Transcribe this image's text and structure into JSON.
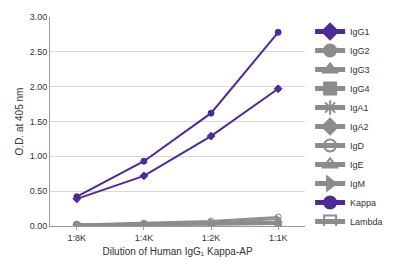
{
  "chart_data": {
    "type": "line",
    "x_label": "Dilution of Human IgG₁ Kappa-AP",
    "y_label": "O.D. at 405 nm",
    "categories": [
      "1:8K",
      "1:4K",
      "1:2K",
      "1:1K"
    ],
    "ylim": [
      0,
      3
    ],
    "yticks": [
      {
        "value": 0,
        "label": "0.00"
      },
      {
        "value": 0.5,
        "label": "0.50"
      },
      {
        "value": 1,
        "label": "1.00"
      },
      {
        "value": 1.5,
        "label": "1.50"
      },
      {
        "value": 2,
        "label": "2.00"
      },
      {
        "value": 2.5,
        "label": "2.50"
      },
      {
        "value": 3,
        "label": "3.00"
      }
    ],
    "grid": true,
    "legend": "right",
    "series": [
      {
        "name": "IgG1",
        "color": "#4f2a96",
        "marker": "diamond",
        "values": [
          0.39,
          0.72,
          1.29,
          1.97
        ]
      },
      {
        "name": "IgG2",
        "color": "#8c8c8c",
        "marker": "circle",
        "values": [
          0.02,
          0.02,
          0.03,
          0.04
        ]
      },
      {
        "name": "IgG3",
        "color": "#8c8c8c",
        "marker": "triangle-up",
        "values": [
          0.02,
          0.02,
          0.03,
          0.04
        ]
      },
      {
        "name": "IgG4",
        "color": "#8c8c8c",
        "marker": "square",
        "values": [
          0.01,
          0.01,
          0.02,
          0.03
        ]
      },
      {
        "name": "IgA1",
        "color": "#8c8c8c",
        "marker": "asterisk-open",
        "values": [
          0.02,
          0.02,
          0.03,
          0.05
        ]
      },
      {
        "name": "IgA2",
        "color": "#8c8c8c",
        "marker": "diamond",
        "values": [
          0.02,
          0.03,
          0.04,
          0.06
        ]
      },
      {
        "name": "IgD",
        "color": "#8c8c8c",
        "marker": "circle-open",
        "values": [
          0.02,
          0.04,
          0.07,
          0.13
        ]
      },
      {
        "name": "IgE",
        "color": "#8c8c8c",
        "marker": "triangle-up-open",
        "values": [
          0.01,
          0.02,
          0.03,
          0.04
        ]
      },
      {
        "name": "IgM",
        "color": "#8c8c8c",
        "marker": "triangle-right",
        "values": [
          0.02,
          0.03,
          0.05,
          0.1
        ]
      },
      {
        "name": "Kappa",
        "color": "#4f2a96",
        "marker": "circle",
        "values": [
          0.42,
          0.93,
          1.62,
          2.78
        ]
      },
      {
        "name": "Lambda",
        "color": "#8c8c8c",
        "marker": "square-open",
        "values": [
          0.01,
          0.02,
          0.02,
          0.03
        ]
      }
    ]
  }
}
